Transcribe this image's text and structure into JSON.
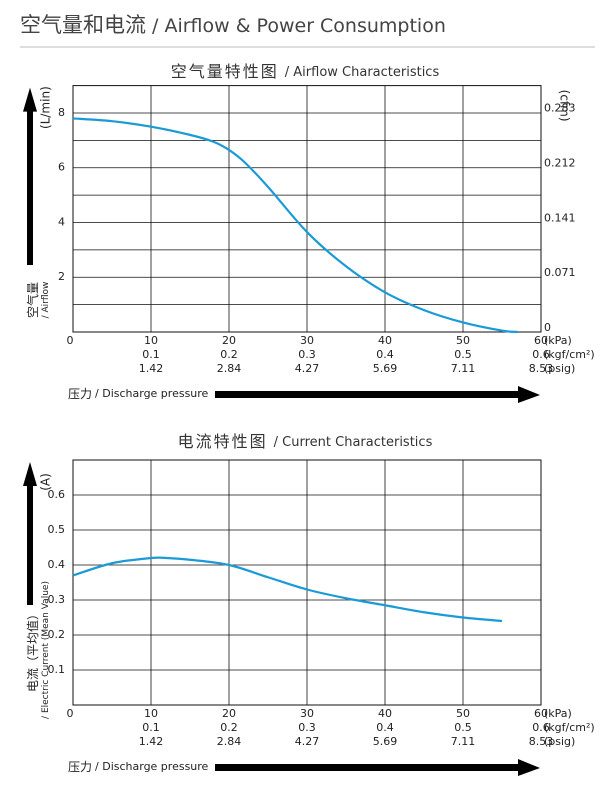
{
  "header": {
    "title": "空气量和电流",
    "subtitle": "/ Airflow & Power Consumption"
  },
  "chart_data": [
    {
      "type": "line",
      "title": "空气量特性图",
      "title_en": "/ Airflow Characteristics",
      "x": [
        0,
        5,
        10,
        15,
        18,
        20,
        22,
        25,
        30,
        35,
        40,
        45,
        50,
        55,
        57
      ],
      "values": [
        7.8,
        7.7,
        7.5,
        7.2,
        6.95,
        6.65,
        6.2,
        5.3,
        3.65,
        2.4,
        1.45,
        0.8,
        0.35,
        0.05,
        0
      ],
      "color": "#1a9ad6",
      "xlim": [
        0,
        60
      ],
      "xticks": [
        0,
        10,
        20,
        30,
        40,
        50,
        60
      ],
      "xticks_kgf": [
        {
          "value": 10,
          "label": "0.1"
        },
        {
          "value": 20,
          "label": "0.2"
        },
        {
          "value": 30,
          "label": "0.3"
        },
        {
          "value": 40,
          "label": "0.4"
        },
        {
          "value": 50,
          "label": "0.5"
        },
        {
          "value": 60,
          "label": "0.6"
        }
      ],
      "xticks_psig": [
        {
          "value": 10,
          "label": "1.42"
        },
        {
          "value": 20,
          "label": "2.84"
        },
        {
          "value": 30,
          "label": "4.27"
        },
        {
          "value": 40,
          "label": "5.69"
        },
        {
          "value": 50,
          "label": "7.11"
        },
        {
          "value": 60,
          "label": "8.53"
        }
      ],
      "xunits": [
        "(kPa)",
        "(kgf/cm²)",
        "(psig)"
      ],
      "xlabel": "压力",
      "xlabel_en": "/ Discharge pressure",
      "ylim": [
        0,
        9
      ],
      "yticks": [
        2,
        4,
        6,
        8
      ],
      "minor_yticks": [
        1,
        3,
        5,
        7
      ],
      "ylabel_unit": "(L/min)",
      "ylabel": "空气量",
      "ylabel_en": "/ Airflow",
      "y2lim": [
        0,
        0.318
      ],
      "y2ticks": [
        0,
        0.071,
        0.141,
        0.212,
        0.283
      ],
      "y2label": "(cfm)",
      "grid": true
    },
    {
      "type": "line",
      "title": "电流特性图",
      "title_en": "/ Current Characteristics",
      "x": [
        0,
        5,
        10,
        12,
        15,
        20,
        25,
        30,
        35,
        40,
        45,
        50,
        55
      ],
      "values": [
        0.37,
        0.405,
        0.42,
        0.42,
        0.415,
        0.4,
        0.365,
        0.33,
        0.305,
        0.285,
        0.265,
        0.25,
        0.24
      ],
      "color": "#1a9ad6",
      "xlim": [
        0,
        60
      ],
      "xticks": [
        0,
        10,
        20,
        30,
        40,
        50,
        60
      ],
      "xticks_kgf": [
        {
          "value": 10,
          "label": "0.1"
        },
        {
          "value": 20,
          "label": "0.2"
        },
        {
          "value": 30,
          "label": "0.3"
        },
        {
          "value": 40,
          "label": "0.4"
        },
        {
          "value": 50,
          "label": "0.5"
        },
        {
          "value": 60,
          "label": "0.6"
        }
      ],
      "xticks_psig": [
        {
          "value": 10,
          "label": "1.42"
        },
        {
          "value": 20,
          "label": "2.84"
        },
        {
          "value": 30,
          "label": "4.27"
        },
        {
          "value": 40,
          "label": "5.69"
        },
        {
          "value": 50,
          "label": "7.11"
        },
        {
          "value": 60,
          "label": "8.53"
        }
      ],
      "xunits": [
        "(kPa)",
        "(kgf/cm²)",
        "(psig)"
      ],
      "xlabel": "压力",
      "xlabel_en": "/ Discharge pressure",
      "ylim": [
        0,
        0.7
      ],
      "yticks": [
        0.1,
        0.2,
        0.3,
        0.4,
        0.5,
        0.6
      ],
      "ylabel_unit": "(A)",
      "ylabel": "电流（平均值）",
      "ylabel_en": "/ Electric Current (Mean Value)",
      "grid": true
    }
  ]
}
